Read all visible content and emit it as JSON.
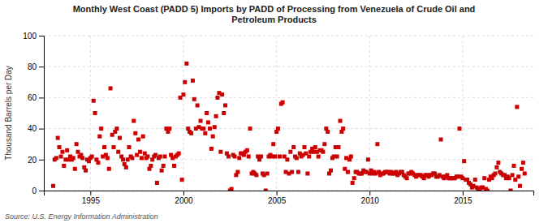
{
  "chart_data": {
    "type": "scatter",
    "title": "Monthly West Coast (PADD 5) Imports by PADD of Processing from Venezuela of Crude Oil and\nPetroleum Products",
    "y_label": "Thousand Barrels per Day",
    "source": "Source: U.S. Energy Information Administration",
    "color": "#cc0000",
    "marker": "square",
    "grid": true,
    "xlim": [
      1992.5,
      2018.8
    ],
    "ylim": [
      0,
      100
    ],
    "xticks": [
      1995,
      2000,
      2005,
      2010,
      2015
    ],
    "yticks": [
      0,
      20,
      40,
      60,
      80,
      100
    ],
    "x": [
      1993.0,
      1993.08,
      1993.17,
      1993.25,
      1993.33,
      1993.42,
      1993.5,
      1993.58,
      1993.67,
      1993.75,
      1993.83,
      1993.92,
      1994.0,
      1994.08,
      1994.17,
      1994.25,
      1994.33,
      1994.42,
      1994.5,
      1994.58,
      1994.67,
      1994.75,
      1994.83,
      1994.92,
      1995.0,
      1995.08,
      1995.17,
      1995.25,
      1995.33,
      1995.42,
      1995.5,
      1995.58,
      1995.67,
      1995.75,
      1995.83,
      1995.92,
      1996.0,
      1996.08,
      1996.17,
      1996.25,
      1996.33,
      1996.42,
      1996.5,
      1996.58,
      1996.67,
      1996.75,
      1996.83,
      1996.92,
      1997.0,
      1997.08,
      1997.17,
      1997.25,
      1997.33,
      1997.42,
      1997.5,
      1997.58,
      1997.67,
      1997.75,
      1997.83,
      1997.92,
      1998.0,
      1998.08,
      1998.17,
      1998.25,
      1998.33,
      1998.42,
      1998.5,
      1998.58,
      1998.67,
      1998.75,
      1998.83,
      1998.92,
      1999.0,
      1999.08,
      1999.17,
      1999.25,
      1999.33,
      1999.42,
      1999.5,
      1999.58,
      1999.67,
      1999.75,
      1999.83,
      1999.92,
      2000.0,
      2000.08,
      2000.17,
      2000.25,
      2000.33,
      2000.42,
      2000.5,
      2000.58,
      2000.67,
      2000.75,
      2000.83,
      2000.92,
      2001.0,
      2001.08,
      2001.17,
      2001.25,
      2001.33,
      2001.42,
      2001.5,
      2001.58,
      2001.67,
      2001.75,
      2001.83,
      2001.92,
      2002.0,
      2002.08,
      2002.17,
      2002.25,
      2002.33,
      2002.42,
      2002.5,
      2002.58,
      2002.67,
      2002.75,
      2002.83,
      2002.92,
      2003.0,
      2003.08,
      2003.17,
      2003.25,
      2003.33,
      2003.42,
      2003.5,
      2003.58,
      2003.67,
      2003.75,
      2003.83,
      2003.92,
      2004.0,
      2004.08,
      2004.17,
      2004.25,
      2004.33,
      2004.42,
      2004.5,
      2004.58,
      2004.67,
      2004.75,
      2004.83,
      2004.92,
      2005.0,
      2005.08,
      2005.17,
      2005.25,
      2005.33,
      2005.42,
      2005.5,
      2005.58,
      2005.67,
      2005.75,
      2005.83,
      2005.92,
      2006.0,
      2006.08,
      2006.17,
      2006.25,
      2006.33,
      2006.42,
      2006.5,
      2006.58,
      2006.67,
      2006.75,
      2006.83,
      2006.92,
      2007.0,
      2007.08,
      2007.17,
      2007.25,
      2007.33,
      2007.42,
      2007.5,
      2007.58,
      2007.67,
      2007.75,
      2007.83,
      2007.92,
      2008.0,
      2008.08,
      2008.17,
      2008.25,
      2008.33,
      2008.42,
      2008.5,
      2008.58,
      2008.67,
      2008.75,
      2008.83,
      2008.92,
      2009.0,
      2009.08,
      2009.17,
      2009.25,
      2009.33,
      2009.42,
      2009.5,
      2009.58,
      2009.67,
      2009.75,
      2009.83,
      2009.92,
      2010.0,
      2010.08,
      2010.17,
      2010.25,
      2010.33,
      2010.42,
      2010.5,
      2010.58,
      2010.67,
      2010.75,
      2010.83,
      2010.92,
      2011.0,
      2011.08,
      2011.17,
      2011.25,
      2011.33,
      2011.42,
      2011.5,
      2011.58,
      2011.67,
      2011.75,
      2011.83,
      2011.92,
      2012.0,
      2012.08,
      2012.17,
      2012.25,
      2012.33,
      2012.42,
      2012.5,
      2012.58,
      2012.67,
      2012.75,
      2012.83,
      2012.92,
      2013.0,
      2013.08,
      2013.17,
      2013.25,
      2013.33,
      2013.42,
      2013.5,
      2013.58,
      2013.67,
      2013.75,
      2013.83,
      2013.92,
      2014.0,
      2014.08,
      2014.17,
      2014.25,
      2014.33,
      2014.42,
      2014.5,
      2014.58,
      2014.67,
      2014.75,
      2014.83,
      2014.92,
      2015.0,
      2015.08,
      2015.17,
      2015.25,
      2015.33,
      2015.42,
      2015.5,
      2015.58,
      2015.67,
      2015.75,
      2015.83,
      2015.92,
      2016.0,
      2016.08,
      2016.17,
      2016.25,
      2016.33,
      2016.42,
      2016.5,
      2016.58,
      2016.67,
      2016.75,
      2016.83,
      2016.92,
      2017.0,
      2017.08,
      2017.17,
      2017.25,
      2017.33,
      2017.42,
      2017.5,
      2017.58,
      2017.67,
      2017.75,
      2017.83,
      2017.92,
      2018.0,
      2018.08,
      2018.17,
      2018.25,
      2018.33
    ],
    "values": [
      3,
      20,
      21,
      34,
      28,
      22,
      25,
      16,
      20,
      26,
      20,
      22,
      20,
      21,
      14,
      30,
      25,
      22,
      23,
      21,
      15,
      13,
      20,
      19,
      21,
      22,
      58,
      50,
      20,
      18,
      35,
      40,
      22,
      28,
      23,
      21,
      14,
      66,
      36,
      28,
      38,
      40,
      25,
      34,
      22,
      20,
      17,
      15,
      20,
      28,
      22,
      21,
      45,
      37,
      23,
      33,
      25,
      21,
      35,
      24,
      21,
      22,
      14,
      16,
      20,
      22,
      23,
      5,
      21,
      22,
      13,
      16,
      22,
      40,
      38,
      40,
      23,
      21,
      16,
      22,
      23,
      24,
      60,
      7,
      62,
      70,
      82,
      40,
      38,
      37,
      71,
      59,
      40,
      55,
      41,
      45,
      40,
      40,
      37,
      50,
      44,
      40,
      27,
      35,
      41,
      48,
      60,
      63,
      25,
      62,
      50,
      55,
      24,
      22,
      0,
      1,
      23,
      22,
      10,
      12,
      21,
      24,
      24,
      23,
      25,
      26,
      22,
      40,
      11,
      12,
      11,
      10,
      22,
      20,
      22,
      11,
      10,
      0,
      11,
      22,
      23,
      22,
      30,
      22,
      38,
      40,
      22,
      56,
      57,
      22,
      12,
      20,
      11,
      25,
      12,
      28,
      22,
      21,
      12,
      24,
      22,
      23,
      28,
      24,
      11,
      22,
      25,
      27,
      25,
      28,
      25,
      22,
      26,
      26,
      25,
      30,
      40,
      38,
      11,
      13,
      21,
      22,
      28,
      22,
      28,
      45,
      38,
      40,
      14,
      21,
      12,
      20,
      22,
      5,
      8,
      12,
      12,
      11,
      11,
      11,
      13,
      12,
      12,
      20,
      11,
      13,
      11,
      12,
      11,
      30,
      12,
      10,
      11,
      11,
      12,
      12,
      12,
      11,
      12,
      11,
      11,
      12,
      10,
      11,
      12,
      12,
      10,
      9,
      8,
      11,
      11,
      12,
      11,
      10,
      9,
      10,
      10,
      10,
      9,
      8,
      10,
      10,
      9,
      10,
      10,
      11,
      11,
      9,
      9,
      10,
      33,
      9,
      8,
      9,
      10,
      8,
      8,
      8,
      8,
      8,
      9,
      9,
      40,
      9,
      8,
      19,
      7,
      7,
      5,
      4,
      2,
      3,
      7,
      2,
      1,
      0,
      2,
      2,
      8,
      1,
      0,
      7,
      9,
      8,
      10,
      11,
      15,
      18,
      12,
      11,
      10,
      10,
      8,
      9,
      8,
      0,
      10,
      16,
      7,
      54,
      9,
      3,
      14,
      18,
      11
    ]
  }
}
